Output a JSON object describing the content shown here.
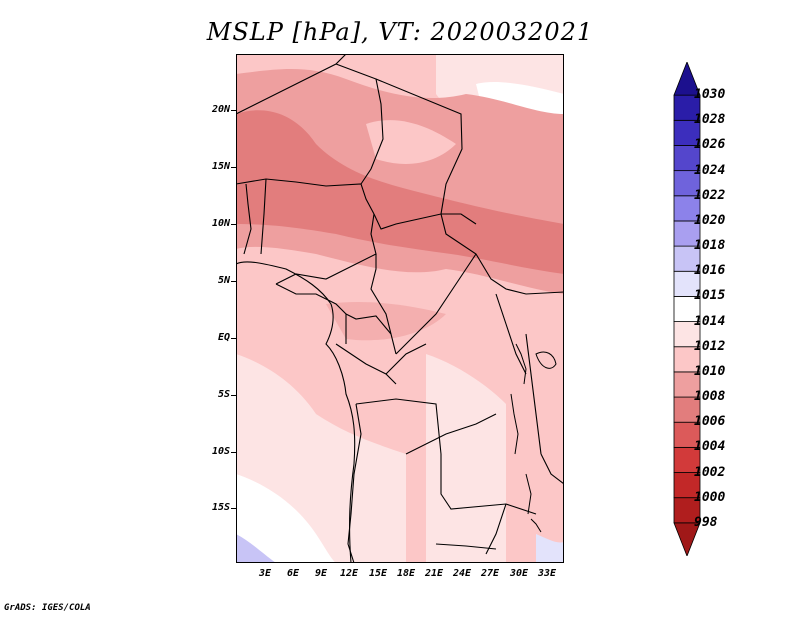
{
  "title": "MSLP [hPa], VT: 2020032021",
  "footer": "GrADS: IGES/COLA",
  "map": {
    "variable": "MSLP",
    "units": "hPa",
    "valid_time": "2020032021",
    "region": "Central Africa",
    "lat_labels": [
      "20N",
      "15N",
      "10N",
      "5N",
      "EQ",
      "5S",
      "10S",
      "15S"
    ],
    "lon_labels": [
      "3E",
      "6E",
      "9E",
      "12E",
      "15E",
      "18E",
      "21E",
      "24E",
      "27E",
      "30E",
      "33E"
    ]
  },
  "colorbar": {
    "levels": [
      "998",
      "1000",
      "1002",
      "1004",
      "1006",
      "1008",
      "1010",
      "1012",
      "1014",
      "1015",
      "1016",
      "1018",
      "1020",
      "1022",
      "1024",
      "1026",
      "1028",
      "1030"
    ],
    "colors": [
      "#a01818",
      "#b01e1e",
      "#c22828",
      "#d23a3a",
      "#dc5a5a",
      "#e27d7d",
      "#ee9f9f",
      "#fcc7c7",
      "#fde4e4",
      "#ffffff",
      "#e3e3fb",
      "#c8c4f6",
      "#a99ff0",
      "#8c82ea",
      "#6f63dc",
      "#5446cc",
      "#3c2ebd",
      "#2a1da8",
      "#1c108e"
    ]
  }
}
